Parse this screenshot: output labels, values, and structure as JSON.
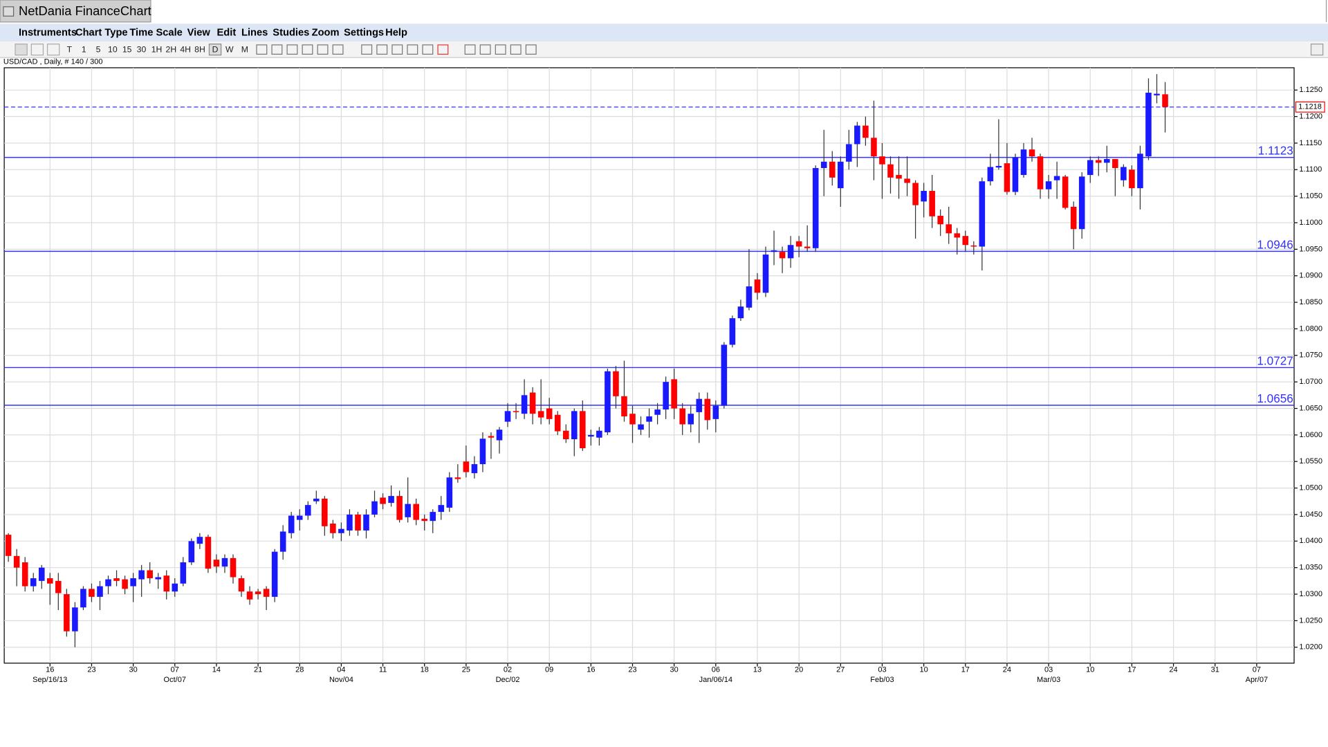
{
  "window": {
    "title": "NetDania FinanceChart"
  },
  "menu": [
    "Instruments",
    "Chart Type",
    "Time Scale",
    "View",
    "Edit",
    "Lines",
    "Studies",
    "Zoom",
    "Settings",
    "Help"
  ],
  "toolbar": [
    "T",
    "1",
    "5",
    "10",
    "15",
    "30",
    "1H",
    "2H",
    "4H",
    "8H",
    "D",
    "W",
    "M"
  ],
  "chart_data": {
    "type": "candlestick",
    "instrument": "USD/CAD , Daily, # 140 / 300",
    "up_color": "#1a1aff",
    "down_color": "#ff0000",
    "grid": true,
    "ylim": [
      1.017,
      1.1292
    ],
    "yticks": [
      {
        "value": 1.02,
        "label": "1.0200"
      },
      {
        "value": 1.025,
        "label": "1.0250"
      },
      {
        "value": 1.03,
        "label": "1.0300"
      },
      {
        "value": 1.035,
        "label": "1.0350"
      },
      {
        "value": 1.04,
        "label": "1.0400"
      },
      {
        "value": 1.045,
        "label": "1.0450"
      },
      {
        "value": 1.05,
        "label": "1.0500"
      },
      {
        "value": 1.055,
        "label": "1.0550"
      },
      {
        "value": 1.06,
        "label": "1.0600"
      },
      {
        "value": 1.065,
        "label": "1.0650"
      },
      {
        "value": 1.07,
        "label": "1.0700"
      },
      {
        "value": 1.075,
        "label": "1.0750"
      },
      {
        "value": 1.08,
        "label": "1.0800"
      },
      {
        "value": 1.085,
        "label": "1.0850"
      },
      {
        "value": 1.09,
        "label": "1.0900"
      },
      {
        "value": 1.095,
        "label": "1.0950"
      },
      {
        "value": 1.1,
        "label": "1.1000"
      },
      {
        "value": 1.105,
        "label": "1.1050"
      },
      {
        "value": 1.11,
        "label": "1.1100"
      },
      {
        "value": 1.115,
        "label": "1.1150"
      },
      {
        "value": 1.12,
        "label": "1.1200"
      },
      {
        "value": 1.125,
        "label": "1.1250"
      }
    ],
    "levels": [
      1.1123,
      1.0946,
      1.0727,
      1.0656
    ],
    "level_color": "#3333ff",
    "last_price": 1.1218,
    "categories": [
      null,
      null,
      null,
      null,
      null,
      "16",
      null,
      null,
      null,
      null,
      "23",
      null,
      null,
      null,
      null,
      "30",
      null,
      null,
      null,
      null,
      "07",
      null,
      null,
      null,
      null,
      "14",
      null,
      null,
      null,
      null,
      "21",
      null,
      null,
      null,
      null,
      "28",
      null,
      null,
      null,
      null,
      "04",
      null,
      null,
      null,
      null,
      "11",
      null,
      null,
      null,
      null,
      "18",
      null,
      null,
      null,
      null,
      "25",
      null,
      null,
      null,
      null,
      "02",
      null,
      null,
      null,
      null,
      "09",
      null,
      null,
      null,
      null,
      "16",
      null,
      null,
      null,
      null,
      "23",
      null,
      null,
      null,
      null,
      "30",
      null,
      null,
      null,
      null,
      "06",
      null,
      null,
      null,
      null,
      "13",
      null,
      null,
      null,
      null,
      "20",
      null,
      null,
      null,
      null,
      "27",
      null,
      null,
      null,
      null,
      "03",
      null,
      null,
      null,
      null,
      "10",
      null,
      null,
      null,
      null,
      "17",
      null,
      null,
      null,
      null,
      "24",
      null,
      null,
      null,
      null,
      "03",
      null,
      null,
      null,
      null,
      "10",
      null,
      null,
      null,
      null,
      "17",
      null,
      null,
      null,
      null,
      "24",
      null,
      null,
      null,
      null,
      "31",
      null,
      null,
      null,
      null,
      "07",
      null,
      null,
      null,
      null
    ],
    "month_labels": [
      null,
      null,
      null,
      null,
      null,
      "Sep/16/13",
      null,
      null,
      null,
      null,
      null,
      null,
      null,
      null,
      null,
      null,
      null,
      null,
      null,
      null,
      "Oct/07",
      null,
      null,
      null,
      null,
      null,
      null,
      null,
      null,
      null,
      null,
      null,
      null,
      null,
      null,
      null,
      null,
      null,
      null,
      null,
      "Nov/04",
      null,
      null,
      null,
      null,
      null,
      null,
      null,
      null,
      null,
      null,
      null,
      null,
      null,
      null,
      null,
      null,
      null,
      null,
      null,
      "Dec/02",
      null,
      null,
      null,
      null,
      null,
      null,
      null,
      null,
      null,
      null,
      null,
      null,
      null,
      null,
      null,
      null,
      null,
      null,
      null,
      null,
      null,
      null,
      null,
      null,
      "Jan/06/14",
      null,
      null,
      null,
      null,
      null,
      null,
      null,
      null,
      null,
      null,
      null,
      null,
      null,
      null,
      null,
      null,
      null,
      null,
      null,
      "Feb/03",
      null,
      null,
      null,
      null,
      null,
      null,
      null,
      null,
      null,
      null,
      null,
      null,
      null,
      null,
      null,
      null,
      null,
      null,
      null,
      "Mar/03",
      null,
      null,
      null,
      null,
      null,
      null,
      null,
      null,
      null,
      null,
      null,
      null,
      null,
      null,
      null,
      null,
      null,
      null,
      null,
      null,
      null,
      null,
      null,
      null,
      "Apr/07",
      null,
      null,
      null,
      null
    ],
    "open": [
      1.0412,
      1.0372,
      1.036,
      1.0315,
      1.0325,
      1.033,
      1.0325,
      1.03,
      1.023,
      1.0275,
      1.031,
      1.0295,
      1.0315,
      1.033,
      1.0328,
      1.0315,
      1.0328,
      1.0345,
      1.0328,
      1.0335,
      1.0305,
      1.032,
      1.036,
      1.0395,
      1.0408,
      1.0365,
      1.0352,
      1.0368,
      1.033,
      1.0305,
      1.0305,
      1.031,
      1.0295,
      1.038,
      1.0415,
      1.044,
      1.0448,
      1.0475,
      1.048,
      1.0433,
      1.0415,
      1.042,
      1.045,
      1.042,
      1.045,
      1.0482,
      1.0472,
      1.0485,
      1.0445,
      1.047,
      1.0442,
      1.0438,
      1.0455,
      1.0463,
      1.052,
      1.055,
      1.0528,
      1.0545,
      1.0598,
      1.059,
      1.0625,
      1.0645,
      1.064,
      1.068,
      1.0645,
      1.065,
      1.0638,
      1.0608,
      1.0592,
      1.0645,
      1.0597,
      1.0595,
      1.0605,
      1.072,
      1.0673,
      1.064,
      1.061,
      1.0625,
      1.0638,
      1.0648,
      1.0705,
      1.065,
      1.062,
      1.0643,
      1.0668,
      1.063,
      1.0655,
      1.077,
      1.082,
      1.084,
      1.0893,
      1.0868,
      1.0945,
      1.0945,
      1.0933,
      1.0965,
      1.0955,
      1.0952,
      1.1103,
      1.1115,
      1.1065,
      1.1115,
      1.1148,
      1.1183,
      1.116,
      1.1125,
      1.111,
      1.109,
      1.1083,
      1.1075,
      1.104,
      1.106,
      1.1013,
      1.0997,
      1.098,
      1.0975,
      1.0957,
      1.0955,
      1.1078,
      1.1104,
      1.1112,
      1.1058,
      1.109,
      1.1138,
      1.1125,
      1.1063,
      1.108,
      1.1087,
      1.103,
      1.0988,
      1.109,
      1.1118,
      1.1113,
      1.112,
      1.108,
      1.11,
      1.1065,
      1.1125,
      1.124,
      1.1242,
      null,
      null,
      null,
      null,
      null,
      null,
      null,
      null,
      null,
      null,
      null,
      null,
      null,
      null,
      null
    ],
    "high": [
      1.0415,
      1.0385,
      1.037,
      1.034,
      1.0355,
      1.034,
      1.034,
      1.031,
      1.0285,
      1.0315,
      1.032,
      1.0325,
      1.0335,
      1.0345,
      1.0335,
      1.034,
      1.0355,
      1.036,
      1.034,
      1.0345,
      1.033,
      1.037,
      1.0405,
      1.0415,
      1.0412,
      1.0375,
      1.0375,
      1.0375,
      1.0335,
      1.0315,
      1.031,
      1.0315,
      1.0385,
      1.043,
      1.0455,
      1.046,
      1.0475,
      1.0495,
      1.0485,
      1.044,
      1.0435,
      1.046,
      1.0455,
      1.046,
      1.0495,
      1.049,
      1.0505,
      1.0495,
      1.052,
      1.048,
      1.045,
      1.046,
      1.0485,
      1.053,
      1.0545,
      1.058,
      1.056,
      1.0605,
      1.0605,
      1.0615,
      1.066,
      1.066,
      1.0705,
      1.069,
      1.0705,
      1.067,
      1.0645,
      1.062,
      1.065,
      1.0665,
      1.061,
      1.0615,
      1.0725,
      1.073,
      1.074,
      1.0655,
      1.0635,
      1.065,
      1.066,
      1.071,
      1.0725,
      1.066,
      1.0655,
      1.068,
      1.068,
      1.0665,
      1.0775,
      1.0825,
      1.0855,
      1.095,
      1.0905,
      1.0955,
      1.0985,
      1.0955,
      1.0975,
      1.0975,
      1.0995,
      1.1108,
      1.1175,
      1.1135,
      1.1125,
      1.1175,
      1.119,
      1.12,
      1.123,
      1.115,
      1.1125,
      1.1125,
      1.1125,
      1.108,
      1.1075,
      1.109,
      1.1025,
      1.103,
      1.099,
      1.0985,
      1.0965,
      1.1085,
      1.113,
      1.1195,
      1.115,
      1.113,
      1.115,
      1.116,
      1.113,
      1.109,
      1.1115,
      1.109,
      1.104,
      1.1095,
      1.1125,
      1.1125,
      1.1145,
      1.112,
      1.111,
      1.1108,
      1.1145,
      1.1272,
      1.128,
      1.1265,
      null,
      null,
      null,
      null,
      null,
      null,
      null,
      null,
      null,
      null,
      null,
      null,
      null,
      null,
      null
    ],
    "low": [
      1.0361,
      1.0315,
      1.0305,
      1.0305,
      1.031,
      1.028,
      1.027,
      1.022,
      1.02,
      1.027,
      1.0285,
      1.027,
      1.03,
      1.0315,
      1.03,
      1.0285,
      1.0295,
      1.032,
      1.031,
      1.029,
      1.0295,
      1.0315,
      1.0355,
      1.0385,
      1.034,
      1.034,
      1.034,
      1.032,
      1.0295,
      1.028,
      1.029,
      1.027,
      1.0285,
      1.0365,
      1.0405,
      1.042,
      1.044,
      1.047,
      1.041,
      1.0405,
      1.04,
      1.041,
      1.041,
      1.0405,
      1.0445,
      1.046,
      1.0465,
      1.0435,
      1.0435,
      1.043,
      1.042,
      1.0415,
      1.044,
      1.0455,
      1.051,
      1.052,
      1.0518,
      1.053,
      1.0555,
      1.0565,
      1.0615,
      1.063,
      1.063,
      1.062,
      1.062,
      1.062,
      1.06,
      1.0585,
      1.056,
      1.057,
      1.058,
      1.058,
      1.06,
      1.065,
      1.0625,
      1.0585,
      1.06,
      1.0595,
      1.062,
      1.063,
      1.063,
      1.06,
      1.0605,
      1.0585,
      1.061,
      1.0605,
      1.065,
      1.0765,
      1.0815,
      1.0835,
      1.0855,
      1.086,
      1.092,
      1.0905,
      1.0915,
      1.0935,
      1.0945,
      1.0945,
      1.105,
      1.107,
      1.103,
      1.11,
      1.1105,
      1.1145,
      1.108,
      1.1045,
      1.1055,
      1.1045,
      1.105,
      1.097,
      1.101,
      1.099,
      1.0975,
      1.096,
      1.094,
      1.0945,
      1.094,
      1.091,
      1.107,
      1.11,
      1.1053,
      1.1052,
      1.1085,
      1.1115,
      1.1045,
      1.1045,
      1.1045,
      1.1025,
      1.095,
      1.097,
      1.1075,
      1.1088,
      1.1095,
      1.105,
      1.1068,
      1.105,
      1.1025,
      1.1118,
      1.1225,
      1.117,
      null,
      null,
      null,
      null,
      null,
      null,
      null,
      null,
      null,
      null,
      null,
      null,
      null,
      null,
      null
    ],
    "close": [
      1.0372,
      1.035,
      1.0315,
      1.033,
      1.035,
      1.032,
      1.0302,
      1.023,
      1.0275,
      1.031,
      1.0295,
      1.0315,
      1.0328,
      1.0325,
      1.031,
      1.033,
      1.0345,
      1.033,
      1.0332,
      1.0305,
      1.032,
      1.036,
      1.04,
      1.0408,
      1.0348,
      1.0352,
      1.0368,
      1.0332,
      1.0305,
      1.029,
      1.03,
      1.0295,
      1.038,
      1.0418,
      1.0448,
      1.0448,
      1.0468,
      1.048,
      1.0428,
      1.0415,
      1.0423,
      1.045,
      1.042,
      1.045,
      1.0475,
      1.047,
      1.0485,
      1.044,
      1.047,
      1.044,
      1.0438,
      1.0455,
      1.0468,
      1.052,
      1.0517,
      1.053,
      1.0545,
      1.0593,
      1.0595,
      1.061,
      1.0645,
      1.0643,
      1.0675,
      1.064,
      1.0633,
      1.063,
      1.0607,
      1.0592,
      1.0645,
      1.0575,
      1.06,
      1.0608,
      1.072,
      1.0673,
      1.0635,
      1.062,
      1.062,
      1.0635,
      1.0648,
      1.07,
      1.065,
      1.062,
      1.064,
      1.0668,
      1.0628,
      1.0655,
      1.077,
      1.082,
      1.0842,
      1.088,
      1.0868,
      1.094,
      1.0948,
      1.0933,
      1.0958,
      1.0955,
      1.0952,
      1.1103,
      1.1115,
      1.1085,
      1.1115,
      1.1148,
      1.1183,
      1.116,
      1.1125,
      1.111,
      1.1085,
      1.1083,
      1.1075,
      1.1033,
      1.106,
      1.1012,
      1.0997,
      1.098,
      1.0972,
      1.0958,
      1.0955,
      1.1078,
      1.1105,
      1.1107,
      1.1058,
      1.1123,
      1.1138,
      1.1125,
      1.1063,
      1.1078,
      1.1088,
      1.1028,
      1.0988,
      1.1087,
      1.1118,
      1.1113,
      1.112,
      1.1103,
      1.1105,
      1.1065,
      1.113,
      1.1245,
      1.1243,
      1.1218,
      null,
      null,
      null,
      null,
      null,
      null,
      null,
      null,
      null,
      null,
      null,
      null,
      null,
      null,
      null
    ]
  }
}
